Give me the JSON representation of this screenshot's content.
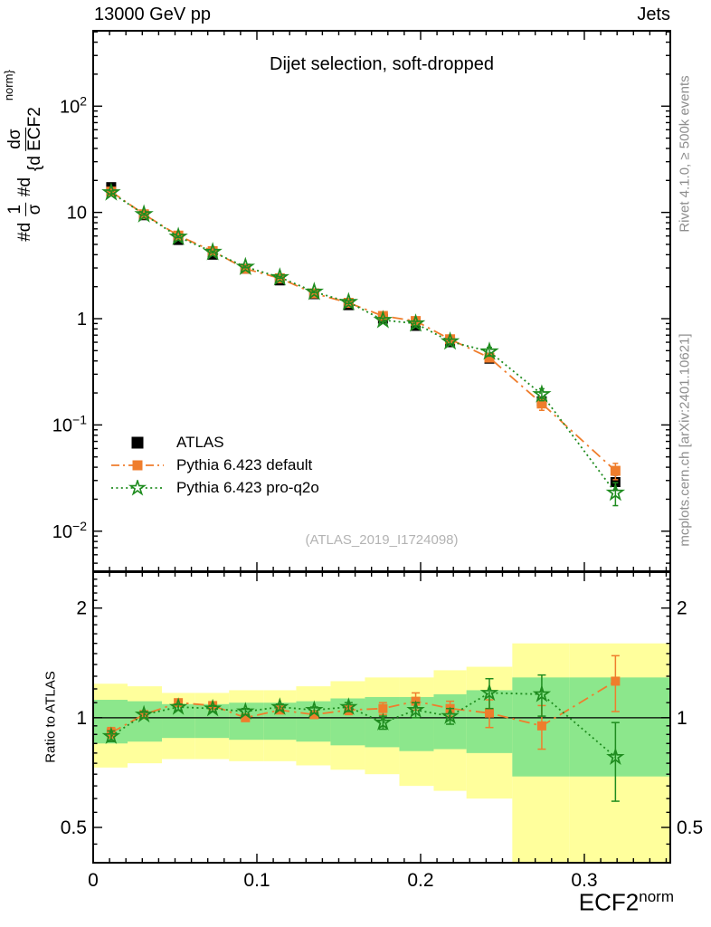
{
  "header": {
    "left": "13000 GeV pp",
    "right": "Jets"
  },
  "panel_title": "Dijet selection, soft-dropped",
  "watermark": "(ATLAS_2019_I1724098)",
  "side_notes": {
    "top_right": "Rivet 4.1.0, ≥ 500k events",
    "bottom_right": "mcplots.cern.ch [arXiv:2401.10621]"
  },
  "y_axis_label": {
    "prefix1": "#d",
    "num1": "1",
    "den1": "σ",
    "prefix2": "#d",
    "num2": "dσ",
    "den2": "{d ECF2",
    "sup": "norm}"
  },
  "ratio_axis_label": "Ratio to ATLAS",
  "x_axis_label": {
    "text": "ECF2",
    "sup": "norm"
  },
  "legend": [
    {
      "label": "ATLAS",
      "marker": "filled-square",
      "color": "#000000",
      "line": "none"
    },
    {
      "label": "Pythia 6.423 default",
      "marker": "filled-square",
      "color": "#ef7d2c",
      "line": "dashdot"
    },
    {
      "label": "Pythia 6.423 pro-q2o",
      "marker": "open-star",
      "color": "#1f8c1f",
      "line": "dotted"
    }
  ],
  "colors": {
    "orange": "#ef7d2c",
    "green": "#1f8c1f",
    "band_yellow": "#ffff9c",
    "band_green": "#8ce78c",
    "gray_text": "#8e8e8e",
    "watermark": "#b3b3b3",
    "frame": "#000000"
  },
  "chart_data": {
    "type": "line",
    "title": "Dijet selection, soft-dropped",
    "xlabel": "ECF2^norm",
    "ylabel": "#d 1/σ #d dσ/{d ECF2^norm}",
    "ratio_ylabel": "Ratio to ATLAS",
    "x_range": [
      0,
      0.3525
    ],
    "main_y_range_log": [
      0.0042,
      512
    ],
    "ratio_y_range": [
      0.4,
      2.51
    ],
    "grid": false,
    "legend_position": "left-middle",
    "bin_edges": [
      0,
      0.021,
      0.042,
      0.062,
      0.083,
      0.104,
      0.124,
      0.145,
      0.166,
      0.187,
      0.208,
      0.228,
      0.256,
      0.291,
      0.3525
    ],
    "x": [
      0.011,
      0.031,
      0.052,
      0.073,
      0.093,
      0.114,
      0.135,
      0.156,
      0.177,
      0.197,
      0.218,
      0.242,
      0.274,
      0.319
    ],
    "series": [
      {
        "name": "ATLAS",
        "marker": "filled-square",
        "color": "#000000",
        "values": [
          17.3,
          9.4,
          5.5,
          4.0,
          2.95,
          2.29,
          1.7,
          1.34,
          1.0,
          0.855,
          0.6,
          0.42,
          0.167,
          0.029
        ],
        "yerr_frac": [
          0.02,
          0.02,
          0.02,
          0.02,
          0.02,
          0.02,
          0.02,
          0.02,
          0.03,
          0.03,
          0.03,
          0.04,
          0.08,
          0.16
        ]
      },
      {
        "name": "Pythia 6.423 default",
        "marker": "filled-square",
        "color": "#ef7d2c",
        "line": "dashdot",
        "values": [
          15.7,
          9.6,
          6.05,
          4.32,
          2.95,
          2.4,
          1.73,
          1.41,
          1.06,
          0.95,
          0.64,
          0.43,
          0.159,
          0.037
        ],
        "ratio": [
          0.91,
          1.02,
          1.1,
          1.08,
          1.0,
          1.05,
          1.02,
          1.05,
          1.06,
          1.11,
          1.06,
          1.03,
          0.95,
          1.26
        ],
        "ratio_err": [
          0.03,
          0.02,
          0.02,
          0.02,
          0.02,
          0.02,
          0.02,
          0.03,
          0.04,
          0.06,
          0.05,
          0.09,
          0.13,
          0.22
        ]
      },
      {
        "name": "Pythia 6.423 pro-q2o",
        "marker": "open-star",
        "color": "#1f8c1f",
        "line": "dotted",
        "values": [
          15.4,
          9.6,
          5.89,
          4.24,
          3.07,
          2.45,
          1.79,
          1.43,
          0.97,
          0.9,
          0.61,
          0.49,
          0.194,
          0.023
        ],
        "ratio": [
          0.89,
          1.02,
          1.07,
          1.06,
          1.04,
          1.07,
          1.05,
          1.07,
          0.97,
          1.05,
          1.01,
          1.17,
          1.16,
          0.78
        ],
        "ratio_err": [
          0.03,
          0.02,
          0.02,
          0.02,
          0.02,
          0.02,
          0.02,
          0.03,
          0.04,
          0.05,
          0.05,
          0.11,
          0.15,
          0.19
        ]
      }
    ],
    "ratio_bands": {
      "yellow": [
        [
          0.73,
          1.24
        ],
        [
          0.75,
          1.22
        ],
        [
          0.77,
          1.17
        ],
        [
          0.77,
          1.17
        ],
        [
          0.76,
          1.19
        ],
        [
          0.76,
          1.19
        ],
        [
          0.74,
          1.22
        ],
        [
          0.72,
          1.26
        ],
        [
          0.7,
          1.29
        ],
        [
          0.65,
          1.29
        ],
        [
          0.63,
          1.35
        ],
        [
          0.6,
          1.38
        ],
        [
          0.4,
          1.6
        ],
        [
          0.4,
          1.6
        ]
      ],
      "green": [
        [
          0.85,
          1.12
        ],
        [
          0.86,
          1.11
        ],
        [
          0.88,
          1.09
        ],
        [
          0.88,
          1.09
        ],
        [
          0.87,
          1.1
        ],
        [
          0.87,
          1.1
        ],
        [
          0.86,
          1.11
        ],
        [
          0.84,
          1.13
        ],
        [
          0.83,
          1.14
        ],
        [
          0.81,
          1.14
        ],
        [
          0.82,
          1.16
        ],
        [
          0.8,
          1.19
        ],
        [
          0.69,
          1.29
        ],
        [
          0.69,
          1.29
        ]
      ]
    },
    "x_ticks": [
      {
        "v": 0,
        "label": "0"
      },
      {
        "v": 0.1,
        "label": "0.1"
      },
      {
        "v": 0.2,
        "label": "0.2"
      },
      {
        "v": 0.3,
        "label": "0.3"
      }
    ],
    "main_y_ticks": [
      {
        "v": 100,
        "label": "10",
        "exp": "2"
      },
      {
        "v": 10,
        "label": "10"
      },
      {
        "v": 1,
        "label": "1"
      },
      {
        "v": 0.1,
        "label": "10",
        "exp": "−1"
      },
      {
        "v": 0.01,
        "label": "10",
        "exp": "−2"
      }
    ],
    "ratio_y_ticks": [
      {
        "v": 2,
        "label": "2"
      },
      {
        "v": 1,
        "label": "1"
      },
      {
        "v": 0.5,
        "label": "0.5"
      }
    ]
  }
}
